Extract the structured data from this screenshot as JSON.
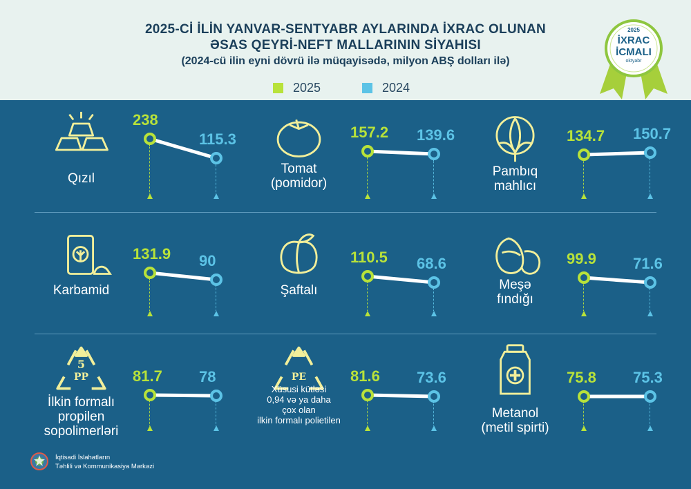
{
  "header": {
    "title_line1": "2025-Cİ İLİN YANVAR-SENTYABR AYLARINDA İXRAC OLUNAN",
    "title_line2": "ƏSAS QEYRİ-NEFT MALLARININ SİYAHISI",
    "subtitle": "(2024-cü ilin eyni dövrü ilə müqayisədə, milyon ABŞ dolları ilə)"
  },
  "legend": [
    {
      "label": "2025",
      "color": "#b8e23a"
    },
    {
      "label": "2024",
      "color": "#5cc3e6"
    }
  ],
  "badge": {
    "year": "2025",
    "line1": "İXRAC",
    "line2": "İCMALI",
    "month": "oktyabr"
  },
  "footer": {
    "line1": "İqtisadi İslahatların",
    "line2": "Təhlili və Kommunikasiya Mərkəzi"
  },
  "colors": {
    "background": "#1b6088",
    "header_background": "#e8f2ef",
    "value_2025": "#b8e23a",
    "value_2024": "#5cc3e6",
    "icon": "#f2ef9a"
  },
  "chart_data": {
    "type": "line",
    "series": [
      "2025",
      "2024"
    ],
    "unit": "milyon ABŞ dolları",
    "items": [
      {
        "id": "qizil",
        "label": [
          "Qızıl"
        ],
        "icon": "gold-bars-icon",
        "v2025": 238,
        "v2024": 115.3
      },
      {
        "id": "tomat",
        "label": [
          "Tomat",
          "(pomidor)"
        ],
        "icon": "tomato-icon",
        "v2025": 157.2,
        "v2024": 139.6
      },
      {
        "id": "pambiq",
        "label": [
          "Pambıq",
          "mahlıcı"
        ],
        "icon": "cotton-icon",
        "v2025": 134.7,
        "v2024": 150.7
      },
      {
        "id": "karbamid",
        "label": [
          "Karbamid"
        ],
        "icon": "fertilizer-bag-icon",
        "v2025": 131.9,
        "v2024": 90
      },
      {
        "id": "shaftali",
        "label": [
          "Şaftalı"
        ],
        "icon": "peach-icon",
        "v2025": 110.5,
        "v2024": 68.6
      },
      {
        "id": "fındıq",
        "label": [
          "Meşə",
          "fındığı"
        ],
        "icon": "hazelnut-icon",
        "v2025": 99.9,
        "v2024": 71.6
      },
      {
        "id": "pp",
        "label": [
          "İlkin formalı",
          "propilen",
          "sopolimerləri"
        ],
        "icon": "recycle-pp-icon",
        "icon_text": [
          "5",
          "PP"
        ],
        "v2025": 81.7,
        "v2024": 78
      },
      {
        "id": "pe",
        "label": [
          "Xüsusi kütləsi",
          "0,94 və ya daha",
          "çox olan",
          "ilkin formalı polietilen"
        ],
        "icon": "recycle-pe-icon",
        "icon_text": [
          "PE"
        ],
        "v2025": 81.6,
        "v2024": 73.6
      },
      {
        "id": "metanol",
        "label": [
          "Metanol",
          "(metil spirti)"
        ],
        "icon": "bottle-icon",
        "v2025": 75.8,
        "v2024": 75.3
      }
    ]
  }
}
